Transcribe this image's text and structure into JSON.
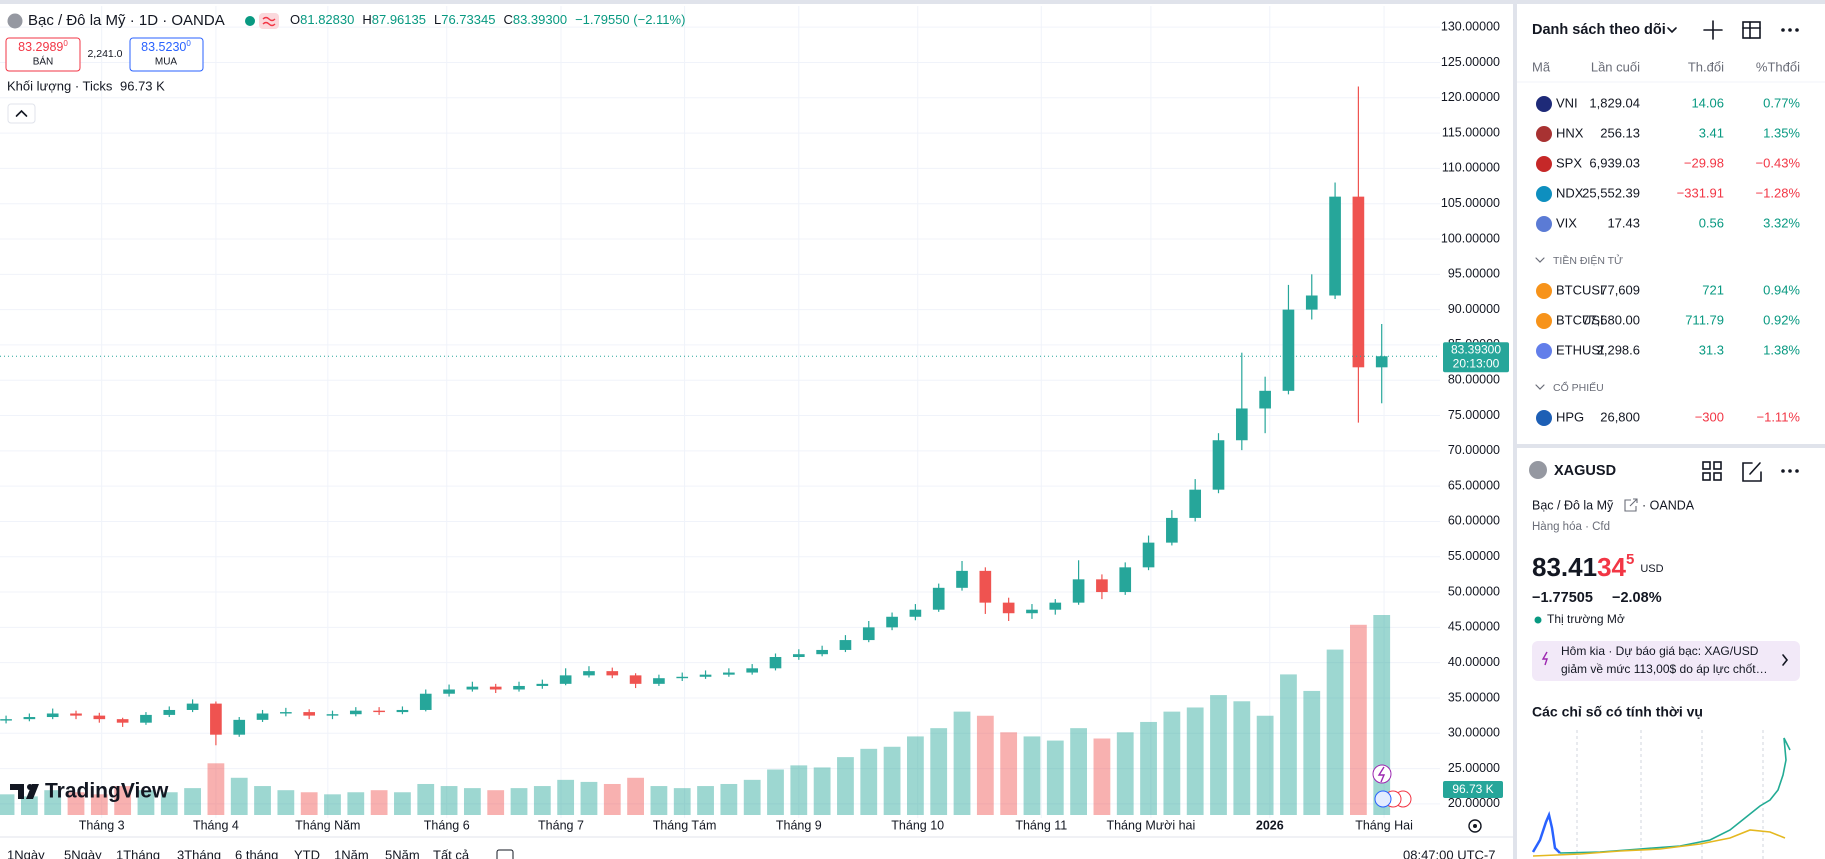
{
  "header": {
    "symbol_title": "Bạc / Đô la Mỹ · 1D · OANDA",
    "ohlc": [
      {
        "label": "O",
        "value": "81.82830"
      },
      {
        "label": "H",
        "value": "87.96135"
      },
      {
        "label": "L",
        "value": "76.73345"
      },
      {
        "label": "C",
        "value": "83.39300"
      }
    ],
    "change": "−1.79550 (−2.11%)",
    "sell_price": "83.2989",
    "sell_price_sup": "0",
    "sell_label": "BÁN",
    "spread": "2,241.0",
    "buy_price": "83.5230",
    "buy_price_sup": "0",
    "buy_label": "MUA",
    "volume_title": "Khối lượng · Ticks",
    "volume_value": "96.73 K"
  },
  "chart_data": {
    "type": "candlestick",
    "logo": "TradingView",
    "price_label": "83.39300",
    "countdown": "20:13:00",
    "up_color": "#26a69a",
    "down_color": "#ef5350",
    "grid": true,
    "categories": [
      null,
      null,
      null,
      null,
      null,
      null,
      null,
      null,
      null,
      null,
      null,
      null,
      null,
      null,
      null,
      null,
      null,
      null,
      null,
      null,
      null,
      null,
      null,
      null,
      null,
      null,
      null,
      null,
      null,
      null,
      null,
      null,
      null,
      null,
      null,
      null,
      null,
      null,
      null,
      null,
      null,
      null,
      null,
      null,
      null,
      null,
      null,
      null,
      null,
      null,
      null,
      null,
      null,
      null,
      null,
      null,
      null,
      null,
      null,
      null
    ],
    "open": [
      31.8,
      32.0,
      32.3,
      32.8,
      32.5,
      32.0,
      31.5,
      32.6,
      33.3,
      34.2,
      29.8,
      31.9,
      32.8,
      33.0,
      32.5,
      32.7,
      33.2,
      33.0,
      33.3,
      35.6,
      36.2,
      36.6,
      36.2,
      36.7,
      37.0,
      38.2,
      38.8,
      38.2,
      37.0,
      37.8,
      38.0,
      38.3,
      38.6,
      39.2,
      40.8,
      41.2,
      41.8,
      43.2,
      45.0,
      46.5,
      47.5,
      50.6,
      53.0,
      48.5,
      47.0,
      47.5,
      48.5,
      51.8,
      50.0,
      53.5,
      57.0,
      60.5,
      64.5,
      71.5,
      76.0,
      78.5,
      90.0,
      92.0,
      106.0,
      81.8283
    ],
    "high": [
      32.5,
      32.8,
      33.5,
      33.2,
      32.9,
      32.2,
      33.0,
      33.8,
      34.8,
      34.5,
      32.3,
      33.3,
      33.6,
      33.4,
      33.2,
      33.7,
      33.7,
      33.8,
      36.2,
      36.9,
      37.3,
      37.0,
      37.3,
      37.6,
      39.2,
      39.5,
      39.3,
      38.5,
      38.3,
      38.6,
      38.9,
      39.2,
      39.8,
      41.3,
      41.9,
      42.4,
      43.9,
      45.9,
      47.1,
      48.3,
      51.2,
      54.4,
      53.5,
      49.2,
      48.3,
      49.0,
      54.5,
      52.5,
      54.2,
      58.0,
      61.6,
      66.0,
      72.5,
      83.9,
      80.5,
      93.5,
      95.0,
      108.0,
      121.6,
      87.96135
    ],
    "low": [
      31.4,
      31.7,
      32.0,
      32.0,
      31.5,
      30.9,
      31.2,
      32.3,
      33.0,
      28.3,
      29.5,
      31.6,
      32.4,
      32.0,
      32.0,
      32.4,
      32.6,
      32.7,
      33.1,
      35.2,
      35.9,
      35.7,
      35.9,
      36.3,
      36.8,
      37.9,
      37.8,
      36.4,
      36.7,
      37.4,
      37.7,
      38.0,
      38.3,
      38.9,
      40.4,
      40.9,
      41.5,
      42.9,
      44.6,
      46.0,
      47.2,
      50.2,
      46.9,
      45.9,
      46.2,
      46.8,
      48.2,
      49.0,
      49.6,
      53.1,
      56.6,
      60.0,
      64.0,
      70.1,
      72.5,
      78.0,
      88.6,
      91.5,
      74.0,
      76.73345
    ],
    "close": [
      32.0,
      32.3,
      32.8,
      32.5,
      32.0,
      31.5,
      32.6,
      33.3,
      34.2,
      29.8,
      31.9,
      32.8,
      33.0,
      32.5,
      32.7,
      33.2,
      33.0,
      33.3,
      35.6,
      36.2,
      36.6,
      36.2,
      36.7,
      37.0,
      38.2,
      38.8,
      38.2,
      37.0,
      37.8,
      38.0,
      38.3,
      38.6,
      39.2,
      40.8,
      41.2,
      41.8,
      43.2,
      45.0,
      46.5,
      47.5,
      50.6,
      53.0,
      48.5,
      47.0,
      47.5,
      48.5,
      51.8,
      50.0,
      53.5,
      57.0,
      60.5,
      64.5,
      71.5,
      76.0,
      78.5,
      90.0,
      92.0,
      106.0,
      81.8283,
      83.393
    ],
    "volume": [
      10,
      9,
      12,
      11,
      10,
      14,
      12,
      11,
      13,
      25,
      18,
      14,
      12,
      11,
      10,
      11,
      12,
      11,
      15,
      14,
      13,
      12,
      13,
      14,
      17,
      16,
      15,
      18,
      14,
      13,
      14,
      15,
      17,
      22,
      24,
      23,
      28,
      32,
      33,
      38,
      42,
      50,
      48,
      40,
      38,
      36,
      42,
      37,
      40,
      45,
      50,
      52,
      58,
      55,
      48,
      68,
      60,
      80,
      92,
      96.73
    ],
    "xlim": [
      -0.26,
      61.5
    ],
    "xticks": [
      {
        "value": 4.1,
        "label": "Tháng 3"
      },
      {
        "value": 9.0,
        "label": "Tháng 4"
      },
      {
        "value": 13.8,
        "label": "Tháng Năm"
      },
      {
        "value": 18.9,
        "label": "Tháng 6"
      },
      {
        "value": 23.8,
        "label": "Tháng 7"
      },
      {
        "value": 29.1,
        "label": "Tháng Tám"
      },
      {
        "value": 34.0,
        "label": "Tháng 9"
      },
      {
        "value": 39.1,
        "label": "Tháng 10"
      },
      {
        "value": 44.4,
        "label": "Tháng 11"
      },
      {
        "value": 49.1,
        "label": "Tháng Mười hai"
      },
      {
        "value": 54.2,
        "label": "2026"
      },
      {
        "value": 59.1,
        "label": "Tháng Hai"
      }
    ],
    "ylim": [
      18,
      133
    ],
    "yticks": [
      {
        "value": 20,
        "label": "20.00000"
      },
      {
        "value": 25,
        "label": "25.00000"
      },
      {
        "value": 30,
        "label": "30.00000"
      },
      {
        "value": 35,
        "label": "35.00000"
      },
      {
        "value": 40,
        "label": "40.00000"
      },
      {
        "value": 45,
        "label": "45.00000"
      },
      {
        "value": 50,
        "label": "50.00000"
      },
      {
        "value": 55,
        "label": "55.00000"
      },
      {
        "value": 60,
        "label": "60.00000"
      },
      {
        "value": 65,
        "label": "65.00000"
      },
      {
        "value": 70,
        "label": "70.00000"
      },
      {
        "value": 75,
        "label": "75.00000"
      },
      {
        "value": 80,
        "label": "80.00000"
      },
      {
        "value": 85,
        "label": "85.00000"
      },
      {
        "value": 90,
        "label": "90.00000"
      },
      {
        "value": 95,
        "label": "95.00000"
      },
      {
        "value": 100,
        "label": "100.00000"
      },
      {
        "value": 105,
        "label": "105.00000"
      },
      {
        "value": 110,
        "label": "110.00000"
      },
      {
        "value": 115,
        "label": "115.00000"
      },
      {
        "value": 120,
        "label": "120.00000"
      },
      {
        "value": 125,
        "label": "125.00000"
      },
      {
        "value": 130,
        "label": "130.00000"
      }
    ]
  },
  "toolbar": {
    "ranges": [
      "1Ngày",
      "5Ngày",
      "1Tháng",
      "3Tháng",
      "6 tháng",
      "YTD",
      "1Năm",
      "5Năm",
      "Tất cả"
    ],
    "time": "08:47:00 UTC-7"
  },
  "watchlist": {
    "title": "Danh sách theo dõi",
    "columns": [
      "Mã",
      "Lần cuối",
      "Th.đổi",
      "%Thđổi"
    ],
    "indices": [
      {
        "symbol": "VNI",
        "last": "1,829.04",
        "change": "14.06",
        "pct": "0.77%",
        "color": "#089981",
        "icon_color": "#1e2a78"
      },
      {
        "symbol": "HNX",
        "last": "256.13",
        "change": "3.41",
        "pct": "1.35%",
        "color": "#089981",
        "icon_color": "#a83232"
      },
      {
        "symbol": "SPX",
        "last": "6,939.03",
        "change": "−29.98",
        "pct": "−0.43%",
        "color": "#f23645",
        "icon_color": "#c62828"
      },
      {
        "symbol": "NDX",
        "last": "25,552.39",
        "change": "−331.91",
        "pct": "−1.28%",
        "color": "#f23645",
        "icon_color": "#0e8fbf"
      },
      {
        "symbol": "VIX",
        "last": "17.43",
        "change": "0.56",
        "pct": "3.32%",
        "color": "#089981",
        "icon_color": "#5b7bd5"
      }
    ],
    "crypto_title": "TIỀN ĐIỆN TỬ",
    "crypto": [
      {
        "symbol": "BTCUSD",
        "last": "77,609",
        "change": "721",
        "pct": "0.94%",
        "color": "#089981",
        "icon_color": "#f7931a"
      },
      {
        "symbol": "BTCUSDT",
        "last": "77,680.00",
        "change": "711.79",
        "pct": "0.92%",
        "color": "#089981",
        "icon_color": "#f7931a"
      },
      {
        "symbol": "ETHUSD",
        "last": "2,298.6",
        "change": "31.3",
        "pct": "1.38%",
        "color": "#089981",
        "icon_color": "#627eea"
      }
    ],
    "stocks_title": "CỔ PHIẾU",
    "stocks": [
      {
        "symbol": "HPG",
        "last": "26,800",
        "change": "−300",
        "pct": "−1.11%",
        "color": "#f23645",
        "icon_color": "#1d5fb5"
      }
    ]
  },
  "details": {
    "symbol": "XAGUSD",
    "name": "Bạc / Đô la Mỹ",
    "exchange_line": "· OANDA",
    "category_line": "Hàng hóa · Cfd",
    "price_main": "83.41",
    "price_accent": "34",
    "price_sup": "5",
    "currency": "USD",
    "change": "−1.77505",
    "change_pct": "−2.08%",
    "status": "Thị trường Mở",
    "news_line1": "Hôm kia · Dự báo giá bạc: XAG/USD",
    "news_line2": "giảm về mức 113,00$ do áp lực chốt…",
    "seasonal_title": "Các chỉ số có tính thời vụ"
  }
}
